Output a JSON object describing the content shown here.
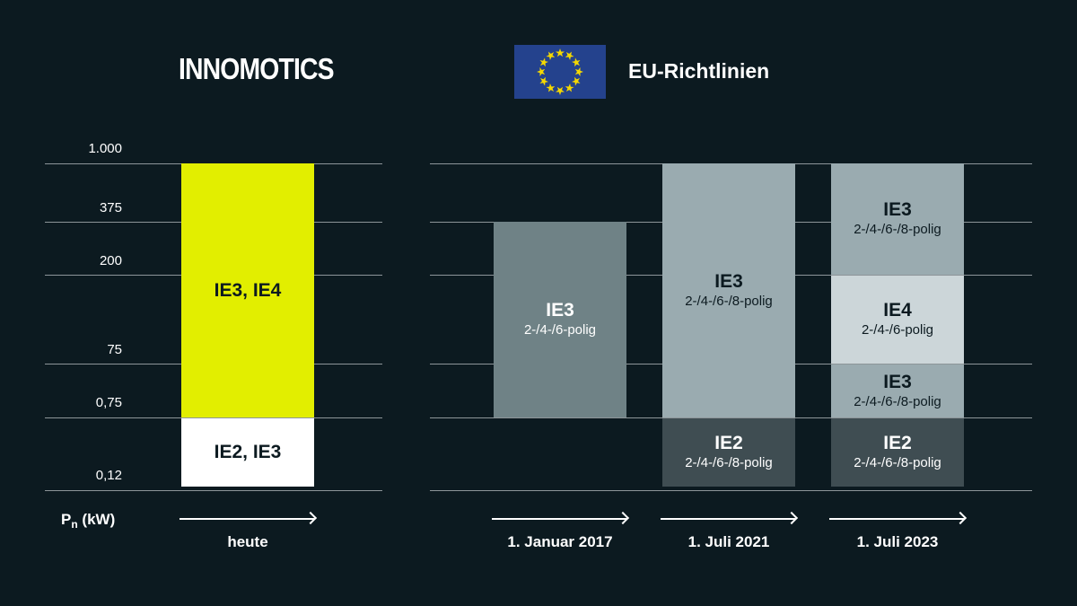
{
  "header": {
    "logo_text": "INNOMOTICS",
    "eu_title": "EU-Richtlinien"
  },
  "axis": {
    "title_main": "P",
    "title_sub": "n",
    "title_unit": " (kW)",
    "labels": [
      "1.000",
      "375",
      "200",
      "75",
      "0,75",
      "0,12"
    ]
  },
  "columns": {
    "heute": {
      "label": "heute",
      "segments": [
        {
          "main": "IE3, IE4",
          "sub": "",
          "color": "#e2ee00",
          "text_color": "#0c1a20"
        },
        {
          "main": "IE2, IE3",
          "sub": "",
          "color": "#ffffff",
          "text_color": "#0c1a20"
        }
      ]
    },
    "jan2017": {
      "label": "1. Januar 2017",
      "segments": [
        {
          "main": "IE3",
          "sub": "2-/4-/6-polig",
          "color": "#6f8286",
          "text_color": "#ffffff"
        }
      ]
    },
    "jul2021": {
      "label": "1. Juli 2021",
      "segments": [
        {
          "main": "IE3",
          "sub": "2-/4-/6-/8-polig",
          "color": "#9aabb0",
          "text_color": "#0c1a20"
        },
        {
          "main": "IE2",
          "sub": "2-/4-/6-/8-polig",
          "color": "#3f4d52",
          "text_color": "#ffffff"
        }
      ]
    },
    "jul2023": {
      "label": "1. Juli 2023",
      "segments": [
        {
          "main": "IE3",
          "sub": "2-/4-/6-/8-polig",
          "color": "#9aabb0",
          "text_color": "#0c1a20"
        },
        {
          "main": "IE4",
          "sub": "2-/4-/6-polig",
          "color": "#ccd6d9",
          "text_color": "#0c1a20"
        },
        {
          "main": "IE3",
          "sub": "2-/4-/6-/8-polig",
          "color": "#9aabb0",
          "text_color": "#0c1a20"
        },
        {
          "main": "IE2",
          "sub": "2-/4-/6-/8-polig",
          "color": "#3f4d52",
          "text_color": "#ffffff"
        }
      ]
    }
  }
}
